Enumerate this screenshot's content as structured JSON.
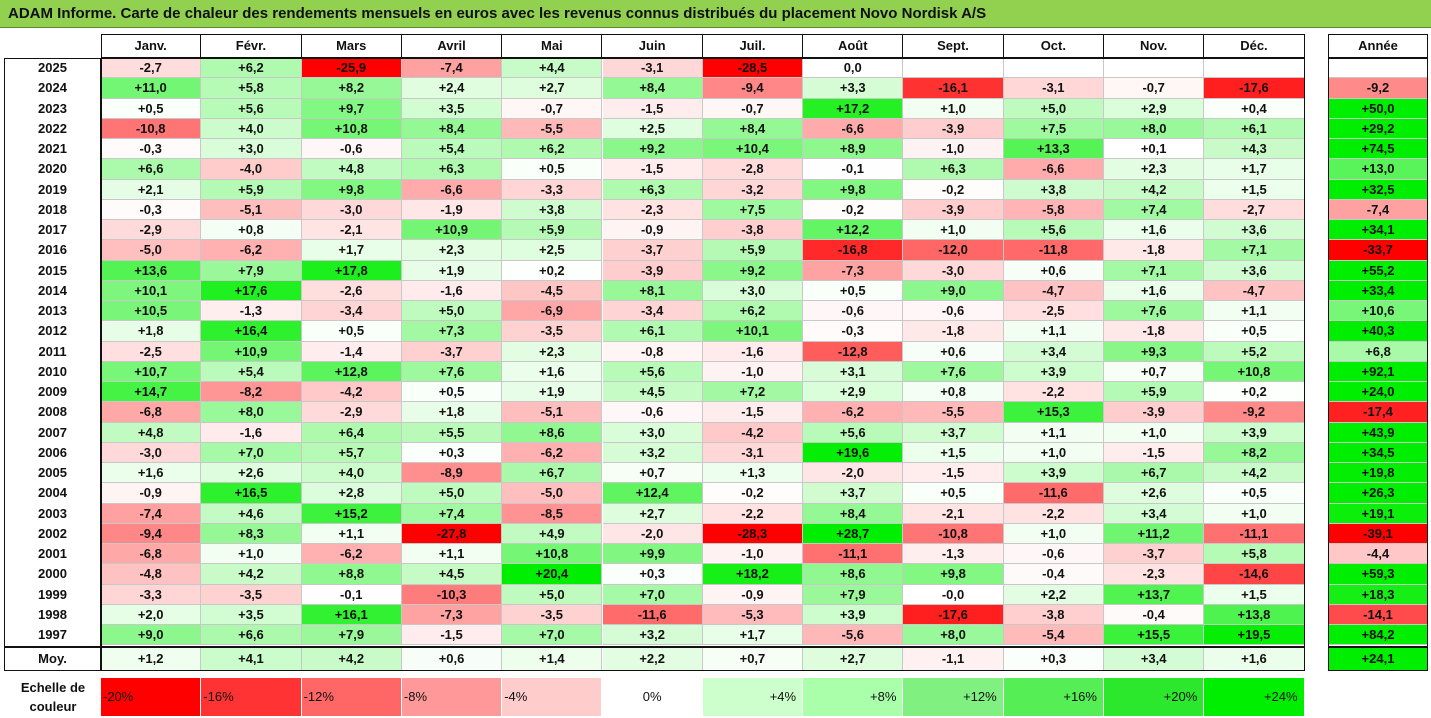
{
  "title": "ADAM Informe. Carte de chaleur des rendements mensuels en euros avec les revenus connus distribués du placement Novo Nordisk A/S",
  "chart_data": {
    "type": "heatmap",
    "columns": [
      "Janv.",
      "Févr.",
      "Mars",
      "Avril",
      "Mai",
      "Juin",
      "Juil.",
      "Août",
      "Sept.",
      "Oct.",
      "Nov.",
      "Déc."
    ],
    "annual_header": "Année",
    "rows": [
      {
        "year": "2025",
        "values": [
          "-2,7",
          "+6,2",
          "-25,9",
          "-7,4",
          "+4,4",
          "-3,1",
          "-28,5",
          "0,0",
          "",
          "",
          "",
          ""
        ],
        "annual": ""
      },
      {
        "year": "2024",
        "values": [
          "+11,0",
          "+5,8",
          "+8,2",
          "+2,4",
          "+2,7",
          "+8,4",
          "-9,4",
          "+3,3",
          "-16,1",
          "-3,1",
          "-0,7",
          "-17,6"
        ],
        "annual": "-9,2"
      },
      {
        "year": "2023",
        "values": [
          "+0,5",
          "+5,6",
          "+9,7",
          "+3,5",
          "-0,7",
          "-1,5",
          "-0,7",
          "+17,2",
          "+1,0",
          "+5,0",
          "+2,9",
          "+0,4"
        ],
        "annual": "+50,0"
      },
      {
        "year": "2022",
        "values": [
          "-10,8",
          "+4,0",
          "+10,8",
          "+8,4",
          "-5,5",
          "+2,5",
          "+8,4",
          "-6,6",
          "-3,9",
          "+7,5",
          "+8,0",
          "+6,1"
        ],
        "annual": "+29,2"
      },
      {
        "year": "2021",
        "values": [
          "-0,3",
          "+3,0",
          "-0,6",
          "+5,4",
          "+6,2",
          "+9,2",
          "+10,4",
          "+8,9",
          "-1,0",
          "+13,3",
          "+0,1",
          "+4,3"
        ],
        "annual": "+74,5"
      },
      {
        "year": "2020",
        "values": [
          "+6,6",
          "-4,0",
          "+4,8",
          "+6,3",
          "+0,5",
          "-1,5",
          "-2,8",
          "-0,1",
          "+6,3",
          "-6,6",
          "+2,3",
          "+1,7"
        ],
        "annual": "+13,0"
      },
      {
        "year": "2019",
        "values": [
          "+2,1",
          "+5,9",
          "+9,8",
          "-6,6",
          "-3,3",
          "+6,3",
          "-3,2",
          "+9,8",
          "-0,2",
          "+3,8",
          "+4,2",
          "+1,5"
        ],
        "annual": "+32,5"
      },
      {
        "year": "2018",
        "values": [
          "-0,3",
          "-5,1",
          "-3,0",
          "-1,9",
          "+3,8",
          "-2,3",
          "+7,5",
          "-0,2",
          "-3,9",
          "-5,8",
          "+7,4",
          "-2,7"
        ],
        "annual": "-7,4"
      },
      {
        "year": "2017",
        "values": [
          "-2,9",
          "+0,8",
          "-2,1",
          "+10,9",
          "+5,9",
          "-0,9",
          "-3,8",
          "+12,2",
          "+1,0",
          "+5,6",
          "+1,6",
          "+3,6"
        ],
        "annual": "+34,1"
      },
      {
        "year": "2016",
        "values": [
          "-5,0",
          "-6,2",
          "+1,7",
          "+2,3",
          "+2,5",
          "-3,7",
          "+5,9",
          "-16,8",
          "-12,0",
          "-11,8",
          "-1,8",
          "+7,1"
        ],
        "annual": "-33,7"
      },
      {
        "year": "2015",
        "values": [
          "+13,6",
          "+7,9",
          "+17,8",
          "+1,9",
          "+0,2",
          "-3,9",
          "+9,2",
          "-7,3",
          "-3,0",
          "+0,6",
          "+7,1",
          "+3,6"
        ],
        "annual": "+55,2"
      },
      {
        "year": "2014",
        "values": [
          "+10,1",
          "+17,6",
          "-2,6",
          "-1,6",
          "-4,5",
          "+8,1",
          "+3,0",
          "+0,5",
          "+9,0",
          "-4,7",
          "+1,6",
          "-4,7"
        ],
        "annual": "+33,4"
      },
      {
        "year": "2013",
        "values": [
          "+10,5",
          "-1,3",
          "-3,4",
          "+5,0",
          "-6,9",
          "-3,4",
          "+6,2",
          "-0,6",
          "-0,6",
          "-2,5",
          "+7,6",
          "+1,1"
        ],
        "annual": "+10,6"
      },
      {
        "year": "2012",
        "values": [
          "+1,8",
          "+16,4",
          "+0,5",
          "+7,3",
          "-3,5",
          "+6,1",
          "+10,1",
          "-0,3",
          "-1,8",
          "+1,1",
          "-1,8",
          "+0,5"
        ],
        "annual": "+40,3"
      },
      {
        "year": "2011",
        "values": [
          "-2,5",
          "+10,9",
          "-1,4",
          "-3,7",
          "+2,3",
          "-0,8",
          "-1,6",
          "-12,8",
          "+0,6",
          "+3,4",
          "+9,3",
          "+5,2"
        ],
        "annual": "+6,8"
      },
      {
        "year": "2010",
        "values": [
          "+10,7",
          "+5,4",
          "+12,8",
          "+7,6",
          "+1,6",
          "+5,6",
          "-1,0",
          "+3,1",
          "+7,6",
          "+3,9",
          "+0,7",
          "+10,8"
        ],
        "annual": "+92,1"
      },
      {
        "year": "2009",
        "values": [
          "+14,7",
          "-8,2",
          "-4,2",
          "+0,5",
          "+1,9",
          "+4,5",
          "+7,2",
          "+2,9",
          "+0,8",
          "-2,2",
          "+5,9",
          "+0,2"
        ],
        "annual": "+24,0"
      },
      {
        "year": "2008",
        "values": [
          "-6,8",
          "+8,0",
          "-2,9",
          "+1,8",
          "-5,1",
          "-0,6",
          "-1,5",
          "-6,2",
          "-5,5",
          "+15,3",
          "-3,9",
          "-9,2"
        ],
        "annual": "-17,4"
      },
      {
        "year": "2007",
        "values": [
          "+4,8",
          "-1,6",
          "+6,4",
          "+5,5",
          "+8,6",
          "+3,0",
          "-4,2",
          "+5,6",
          "+3,7",
          "+1,1",
          "+1,0",
          "+3,9"
        ],
        "annual": "+43,9"
      },
      {
        "year": "2006",
        "values": [
          "-3,0",
          "+7,0",
          "+5,7",
          "+0,3",
          "-6,2",
          "+3,2",
          "-3,1",
          "+19,6",
          "+1,5",
          "+1,0",
          "-1,5",
          "+8,2"
        ],
        "annual": "+34,5"
      },
      {
        "year": "2005",
        "values": [
          "+1,6",
          "+2,6",
          "+4,0",
          "-8,9",
          "+6,7",
          "+0,7",
          "+1,3",
          "-2,0",
          "-1,5",
          "+3,9",
          "+6,7",
          "+4,2"
        ],
        "annual": "+19,8"
      },
      {
        "year": "2004",
        "values": [
          "-0,9",
          "+16,5",
          "+2,8",
          "+5,0",
          "-5,0",
          "+12,4",
          "-0,2",
          "+3,7",
          "+0,5",
          "-11,6",
          "+2,6",
          "+0,5"
        ],
        "annual": "+26,3"
      },
      {
        "year": "2003",
        "values": [
          "-7,4",
          "+4,6",
          "+15,2",
          "+7,4",
          "-8,5",
          "+2,7",
          "-2,2",
          "+8,4",
          "-2,1",
          "-2,2",
          "+3,4",
          "+1,0"
        ],
        "annual": "+19,1"
      },
      {
        "year": "2002",
        "values": [
          "-9,4",
          "+8,3",
          "+1,1",
          "-27,8",
          "+4,9",
          "-2,0",
          "-28,3",
          "+28,7",
          "-10,8",
          "+1,0",
          "+11,2",
          "-11,1"
        ],
        "annual": "-39,1"
      },
      {
        "year": "2001",
        "values": [
          "-6,8",
          "+1,0",
          "-6,2",
          "+1,1",
          "+10,8",
          "+9,9",
          "-1,0",
          "-11,1",
          "-1,3",
          "-0,6",
          "-3,7",
          "+5,8"
        ],
        "annual": "-4,4"
      },
      {
        "year": "2000",
        "values": [
          "-4,8",
          "+4,2",
          "+8,8",
          "+4,5",
          "+20,4",
          "+0,3",
          "+18,2",
          "+8,6",
          "+9,8",
          "-0,4",
          "-2,3",
          "-14,6"
        ],
        "annual": "+59,3"
      },
      {
        "year": "1999",
        "values": [
          "-3,3",
          "-3,5",
          "-0,1",
          "-10,3",
          "+5,0",
          "+7,0",
          "-0,9",
          "+7,9",
          "-0,0",
          "+2,2",
          "+13,7",
          "+1,5"
        ],
        "annual": "+18,3"
      },
      {
        "year": "1998",
        "values": [
          "+2,0",
          "+3,5",
          "+16,1",
          "-7,3",
          "-3,5",
          "-11,6",
          "-5,3",
          "+3,9",
          "-17,6",
          "-3,8",
          "-0,4",
          "+13,8"
        ],
        "annual": "-14,1"
      },
      {
        "year": "1997",
        "values": [
          "+9,0",
          "+6,6",
          "+7,9",
          "-1,5",
          "+7,0",
          "+3,2",
          "+1,7",
          "-5,6",
          "+8,0",
          "-5,4",
          "+15,5",
          "+19,5"
        ],
        "annual": "+84,2"
      }
    ],
    "average": {
      "label": "Moy.",
      "values": [
        "+1,2",
        "+4,1",
        "+4,2",
        "+0,6",
        "+1,4",
        "+2,2",
        "+0,7",
        "+2,7",
        "-1,1",
        "+0,3",
        "+3,4",
        "+1,6"
      ],
      "annual": "+24,1"
    }
  },
  "legend": {
    "label_line1": "Echelle de",
    "label_line2": "couleur",
    "steps": [
      {
        "label": "-20%",
        "value": -20,
        "color": "#ff0000"
      },
      {
        "label": "-16%",
        "value": -16,
        "color": "#ff3333"
      },
      {
        "label": "-12%",
        "value": -12,
        "color": "#ff6666"
      },
      {
        "label": "-8%",
        "value": -8,
        "color": "#ff9999"
      },
      {
        "label": "-4%",
        "value": -4,
        "color": "#ffcccc"
      },
      {
        "label": "0%",
        "value": 0,
        "color": "#ffffff"
      },
      {
        "label": "+4%",
        "value": 4,
        "color": "#ccffcc"
      },
      {
        "label": "+8%",
        "value": 8,
        "color": "#aaffaa"
      },
      {
        "label": "+12%",
        "value": 12,
        "color": "#80f080"
      },
      {
        "label": "+16%",
        "value": 16,
        "color": "#55ee55"
      },
      {
        "label": "+20%",
        "value": 20,
        "color": "#2ce82c"
      },
      {
        "label": "+24%",
        "value": 24,
        "color": "#00ee00"
      }
    ]
  },
  "colors": {
    "title_background": "#92d050",
    "negative_max": "#ff0000",
    "positive_max": "#00ee00",
    "neutral": "#ffffff"
  }
}
